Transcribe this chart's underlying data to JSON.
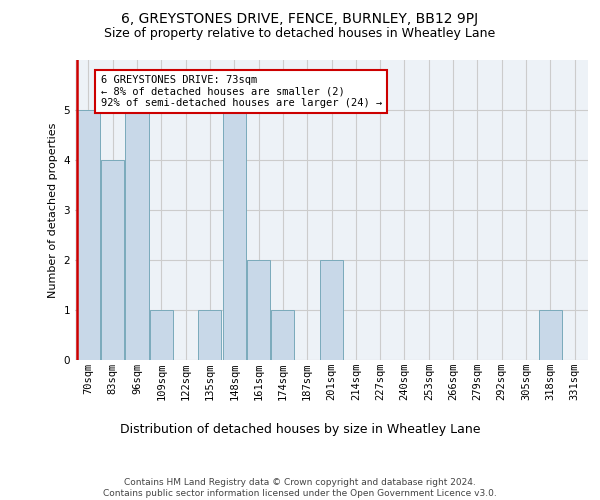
{
  "title": "6, GREYSTONES DRIVE, FENCE, BURNLEY, BB12 9PJ",
  "subtitle": "Size of property relative to detached houses in Wheatley Lane",
  "xlabel": "Distribution of detached houses by size in Wheatley Lane",
  "ylabel": "Number of detached properties",
  "categories": [
    "70sqm",
    "83sqm",
    "96sqm",
    "109sqm",
    "122sqm",
    "135sqm",
    "148sqm",
    "161sqm",
    "174sqm",
    "187sqm",
    "201sqm",
    "214sqm",
    "227sqm",
    "240sqm",
    "253sqm",
    "266sqm",
    "279sqm",
    "292sqm",
    "305sqm",
    "318sqm",
    "331sqm"
  ],
  "values": [
    5,
    4,
    5,
    1,
    0,
    1,
    5,
    2,
    1,
    0,
    2,
    0,
    0,
    0,
    0,
    0,
    0,
    0,
    0,
    1,
    0
  ],
  "bar_color": "#c8d8e8",
  "bar_edge_color": "#7aaabb",
  "highlight_bar_edge_color": "#cc0000",
  "annotation_box_text": "6 GREYSTONES DRIVE: 73sqm\n← 8% of detached houses are smaller (2)\n92% of semi-detached houses are larger (24) →",
  "annotation_box_color": "white",
  "annotation_box_edge_color": "#cc0000",
  "ylim": [
    0,
    6
  ],
  "yticks": [
    0,
    1,
    2,
    3,
    4,
    5
  ],
  "grid_color": "#cccccc",
  "background_color": "#edf2f7",
  "footer_text": "Contains HM Land Registry data © Crown copyright and database right 2024.\nContains public sector information licensed under the Open Government Licence v3.0.",
  "title_fontsize": 10,
  "subtitle_fontsize": 9,
  "xlabel_fontsize": 9,
  "ylabel_fontsize": 8,
  "tick_fontsize": 7.5,
  "annotation_fontsize": 7.5,
  "footer_fontsize": 6.5
}
